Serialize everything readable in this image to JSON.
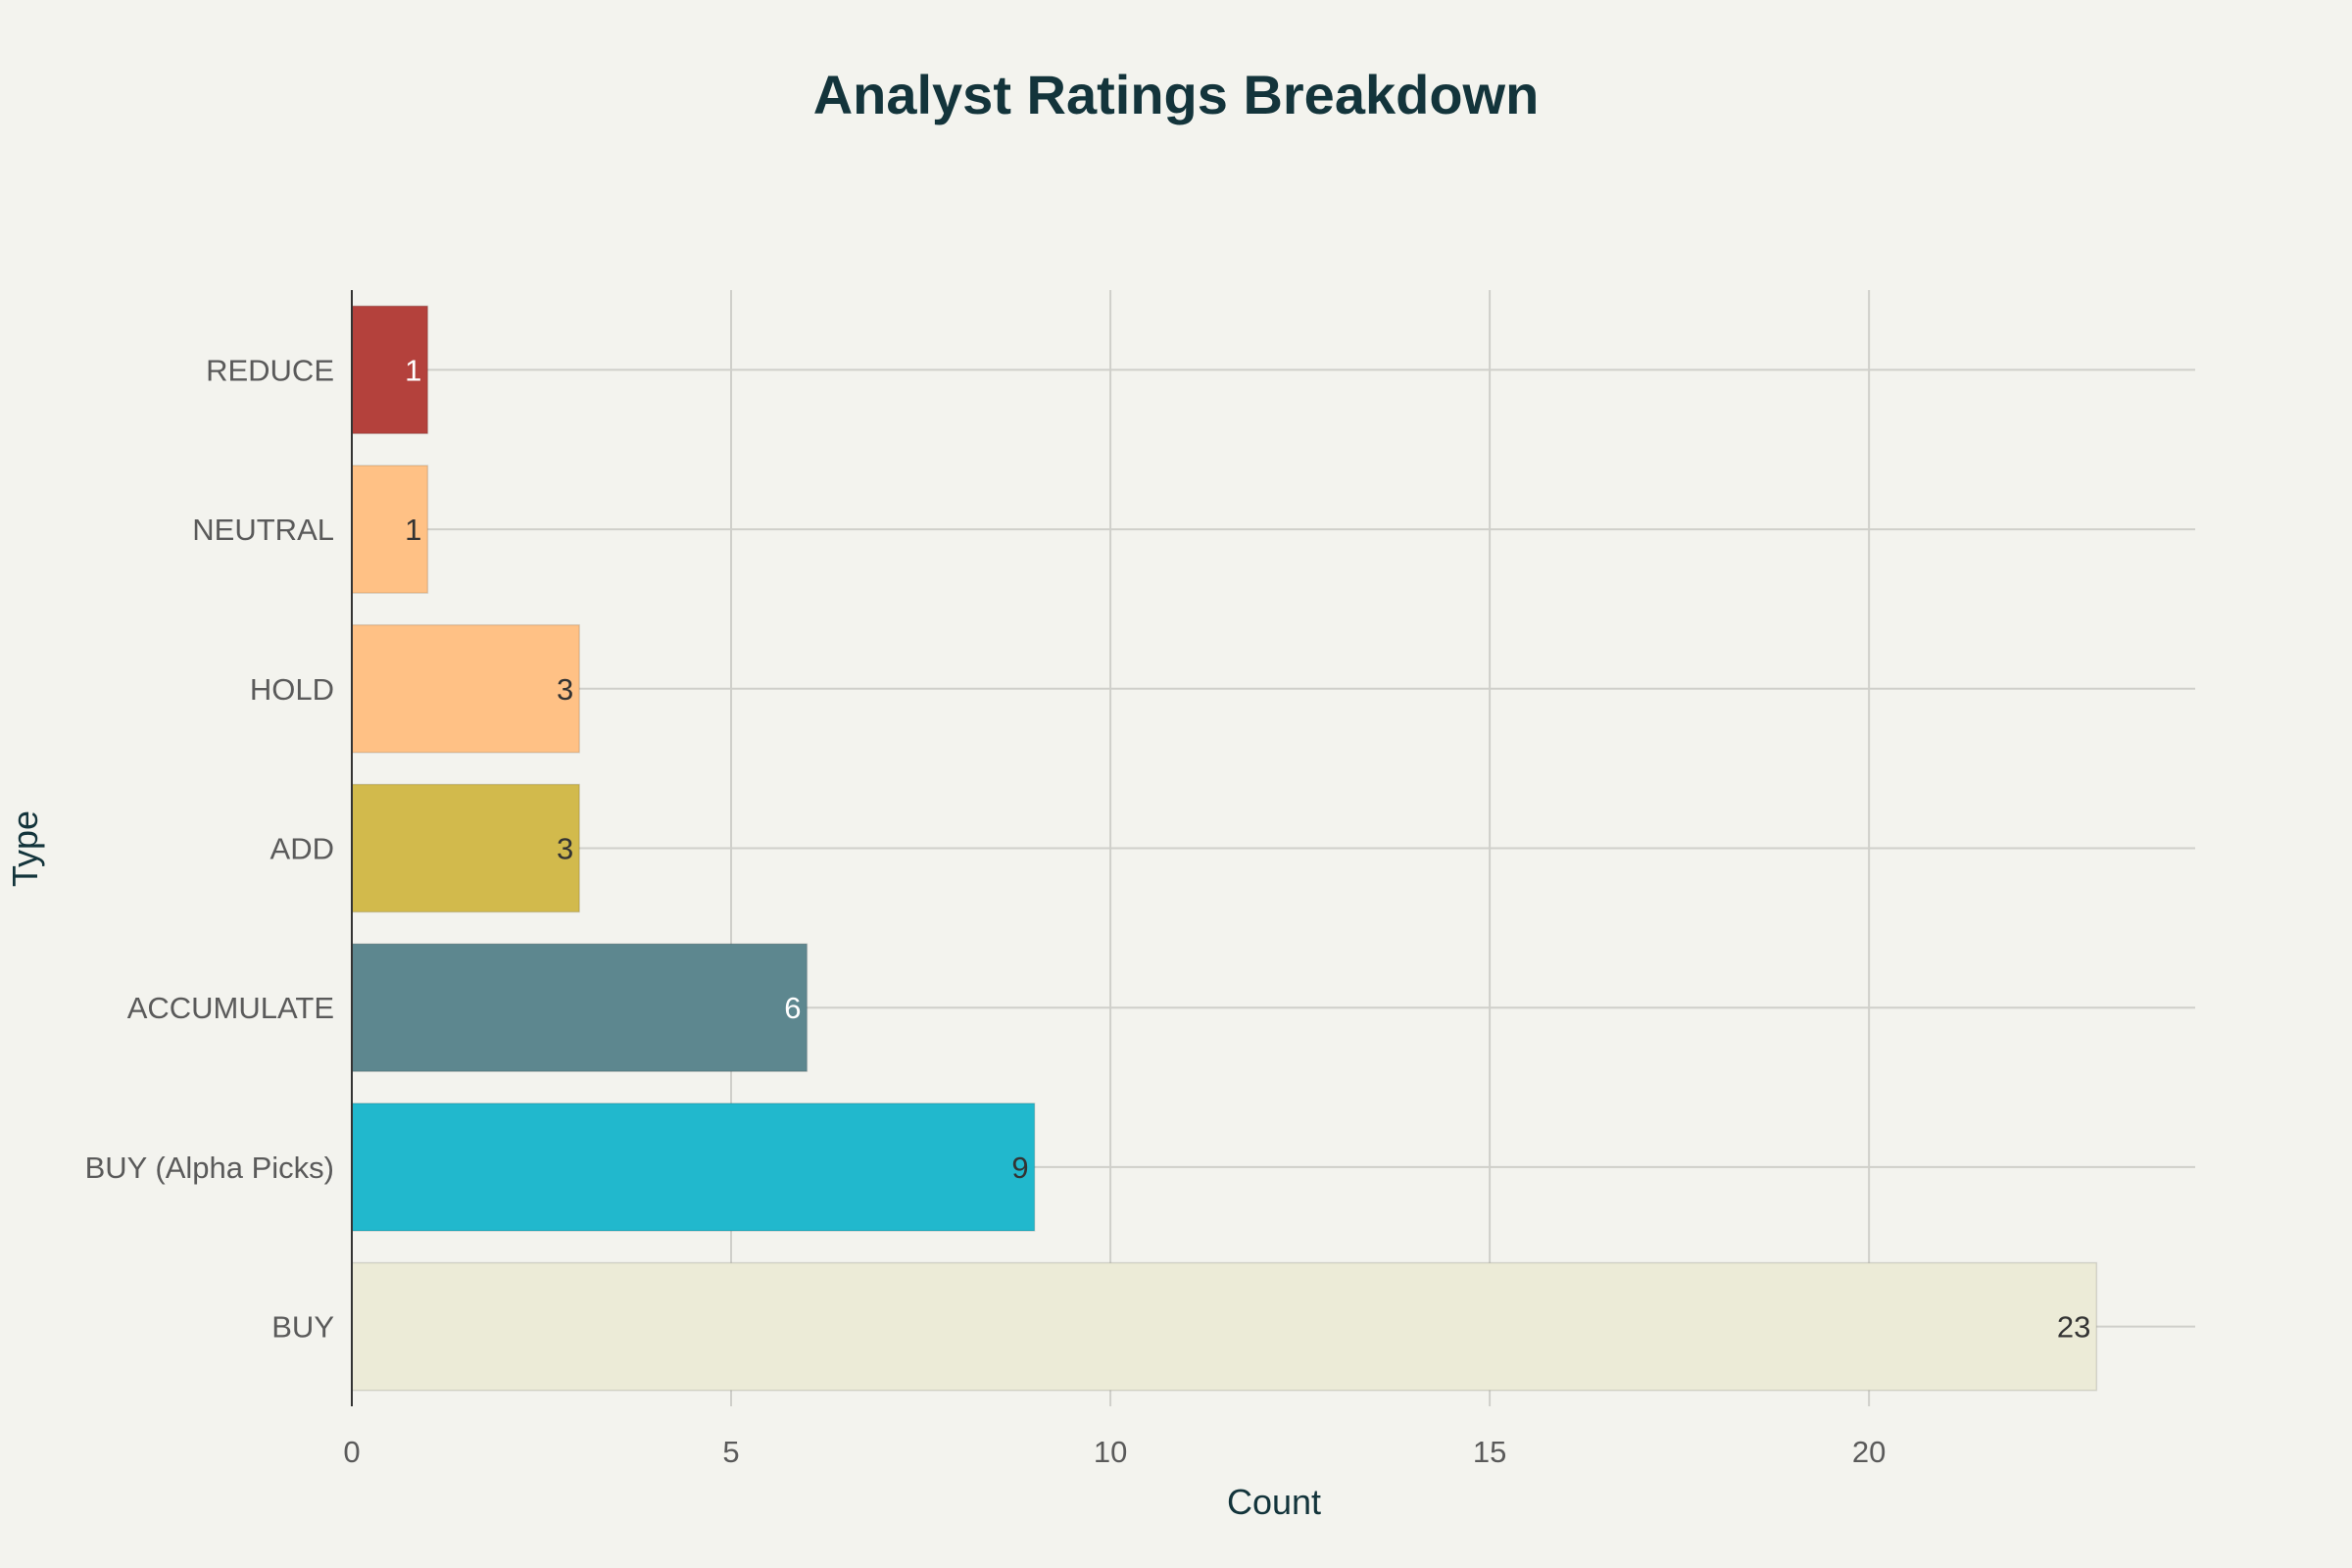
{
  "chart_data": {
    "type": "bar",
    "orientation": "horizontal",
    "title": "Analyst Ratings Breakdown",
    "xlabel": "Count",
    "ylabel": "Type",
    "xlim": [
      0,
      24.3
    ],
    "xticks": [
      0,
      5,
      10,
      15,
      20
    ],
    "grid": true,
    "categories": [
      "BUY",
      "BUY (Alpha Picks)",
      "ACCUMULATE",
      "ADD",
      "HOLD",
      "NEUTRAL",
      "REDUCE"
    ],
    "values": [
      23,
      9,
      6,
      3,
      3,
      1,
      1
    ],
    "data_labels": [
      "23",
      "9",
      "6",
      "3",
      "3",
      "1",
      "1"
    ],
    "colors": [
      "#ecebd7",
      "#21b8cd",
      "#5d878f",
      "#d2ba4c",
      "#ffc185",
      "#ffc185",
      "#b4413c"
    ],
    "label_colors": [
      "#333333",
      "#333333",
      "#ffffff",
      "#333333",
      "#333333",
      "#333333",
      "#ffffff"
    ]
  }
}
